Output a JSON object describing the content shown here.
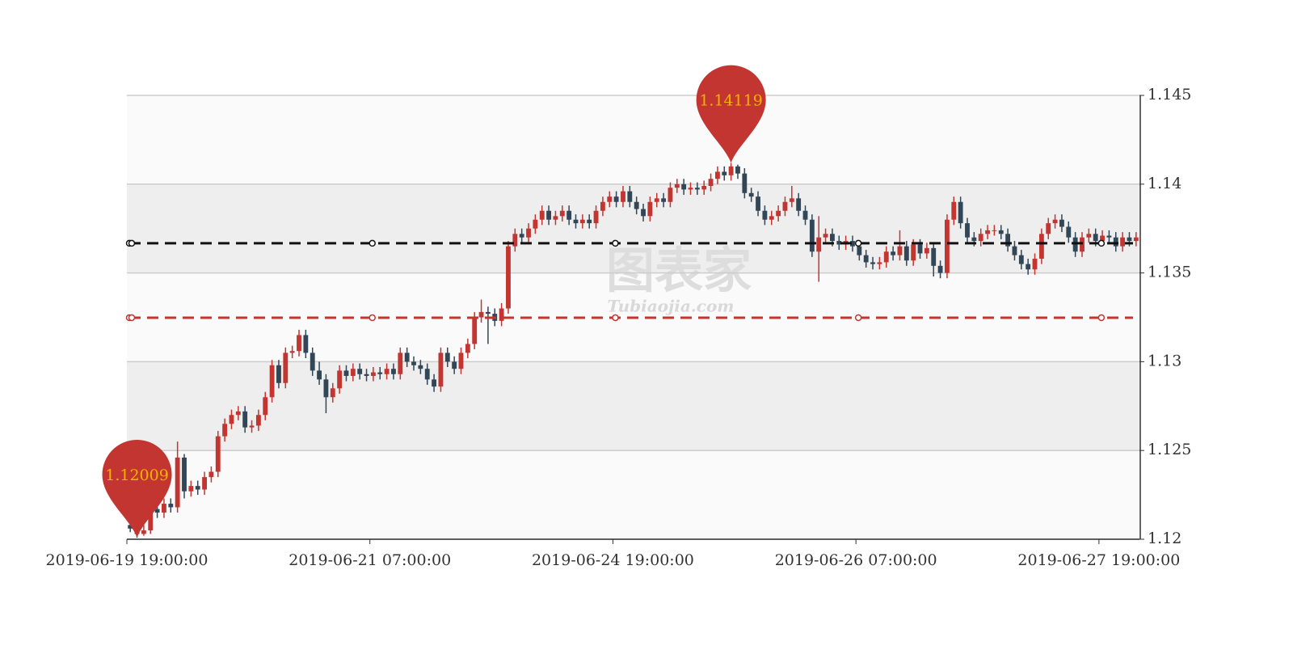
{
  "chart_data": {
    "type": "candlestick",
    "watermark": [
      "图表家",
      "Tubiaojia.com"
    ],
    "categories": [
      "2019-06-19 19:00:00",
      null,
      null,
      null,
      null,
      null,
      null,
      null,
      null,
      null,
      null,
      null,
      null,
      null,
      null,
      null,
      null,
      null,
      null,
      null,
      null,
      null,
      null,
      null,
      null,
      null,
      null,
      null,
      null,
      null,
      null,
      null,
      null,
      null,
      null,
      null,
      "2019-06-21 07:00:00",
      null,
      null,
      null,
      null,
      null,
      null,
      null,
      null,
      null,
      null,
      null,
      null,
      null,
      null,
      null,
      null,
      null,
      null,
      null,
      null,
      null,
      null,
      null,
      null,
      null,
      null,
      null,
      null,
      null,
      null,
      null,
      null,
      null,
      null,
      null,
      "2019-06-24 19:00:00",
      null,
      null,
      null,
      null,
      null,
      null,
      null,
      null,
      null,
      null,
      null,
      null,
      null,
      null,
      null,
      null,
      null,
      null,
      null,
      null,
      null,
      null,
      null,
      null,
      null,
      null,
      null,
      null,
      null,
      null,
      null,
      null,
      null,
      null,
      null,
      "2019-06-26 07:00:00",
      null,
      null,
      null,
      null,
      null,
      null,
      null,
      null,
      null,
      null,
      null,
      null,
      null,
      null,
      null,
      null,
      null,
      null,
      null,
      null,
      null,
      null,
      null,
      null,
      null,
      null,
      null,
      null,
      null,
      null,
      null,
      null,
      null,
      null,
      null,
      "2019-06-27 19:00:00",
      null,
      null,
      null,
      null,
      null
    ],
    "ohlc": [
      [
        1.1208,
        1.1206,
        1.1204,
        1.121
      ],
      [
        1.1206,
        1.1203,
        1.12009,
        1.1208
      ],
      [
        1.1203,
        1.1205,
        1.1202,
        1.1208
      ],
      [
        1.1205,
        1.1217,
        1.1203,
        1.122
      ],
      [
        1.1217,
        1.1215,
        1.1212,
        1.122
      ],
      [
        1.1215,
        1.122,
        1.1212,
        1.1223
      ],
      [
        1.122,
        1.1218,
        1.1215,
        1.1223
      ],
      [
        1.1218,
        1.1246,
        1.1215,
        1.1255
      ],
      [
        1.1246,
        1.1227,
        1.1223,
        1.1248
      ],
      [
        1.1227,
        1.123,
        1.1224,
        1.1233
      ],
      [
        1.123,
        1.1228,
        1.1225,
        1.1233
      ],
      [
        1.1228,
        1.1235,
        1.1225,
        1.1238
      ],
      [
        1.1235,
        1.1238,
        1.1232,
        1.1241
      ],
      [
        1.1238,
        1.1258,
        1.1235,
        1.1261
      ],
      [
        1.1258,
        1.1265,
        1.1255,
        1.1268
      ],
      [
        1.1265,
        1.127,
        1.1262,
        1.1273
      ],
      [
        1.127,
        1.1272,
        1.1267,
        1.1275
      ],
      [
        1.1272,
        1.1263,
        1.126,
        1.1275
      ],
      [
        1.1263,
        1.1264,
        1.126,
        1.1267
      ],
      [
        1.1264,
        1.127,
        1.1261,
        1.1273
      ],
      [
        1.127,
        1.128,
        1.1267,
        1.1283
      ],
      [
        1.128,
        1.1298,
        1.1277,
        1.1301
      ],
      [
        1.1298,
        1.1288,
        1.1285,
        1.1301
      ],
      [
        1.1288,
        1.1305,
        1.1285,
        1.1308
      ],
      [
        1.1305,
        1.1306,
        1.1302,
        1.1309
      ],
      [
        1.1306,
        1.1315,
        1.1303,
        1.1318
      ],
      [
        1.1315,
        1.1305,
        1.1302,
        1.1318
      ],
      [
        1.1305,
        1.1295,
        1.1292,
        1.1308
      ],
      [
        1.1295,
        1.129,
        1.1287,
        1.13
      ],
      [
        1.129,
        1.128,
        1.1271,
        1.1293
      ],
      [
        1.128,
        1.1285,
        1.1277,
        1.1288
      ],
      [
        1.1285,
        1.1295,
        1.1282,
        1.1298
      ],
      [
        1.1295,
        1.1292,
        1.1289,
        1.1298
      ],
      [
        1.1292,
        1.1296,
        1.1289,
        1.1299
      ],
      [
        1.1296,
        1.1293,
        1.129,
        1.1299
      ],
      [
        1.1293,
        1.1292,
        1.1289,
        1.1296
      ],
      [
        1.1292,
        1.1294,
        1.1289,
        1.1297
      ],
      [
        1.1294,
        1.1293,
        1.129,
        1.1297
      ],
      [
        1.1293,
        1.1296,
        1.129,
        1.1299
      ],
      [
        1.1296,
        1.1293,
        1.129,
        1.1299
      ],
      [
        1.1293,
        1.1305,
        1.129,
        1.1308
      ],
      [
        1.1305,
        1.13,
        1.1297,
        1.1308
      ],
      [
        1.13,
        1.1298,
        1.1295,
        1.1303
      ],
      [
        1.1298,
        1.1296,
        1.1293,
        1.1301
      ],
      [
        1.1296,
        1.129,
        1.1287,
        1.1299
      ],
      [
        1.129,
        1.1286,
        1.1283,
        1.1293
      ],
      [
        1.1286,
        1.1305,
        1.1283,
        1.1308
      ],
      [
        1.1305,
        1.13,
        1.1297,
        1.1308
      ],
      [
        1.13,
        1.1296,
        1.1293,
        1.1303
      ],
      [
        1.1296,
        1.1305,
        1.1293,
        1.1308
      ],
      [
        1.1305,
        1.131,
        1.1302,
        1.1313
      ],
      [
        1.131,
        1.1325,
        1.1307,
        1.1328
      ],
      [
        1.1325,
        1.1328,
        1.1322,
        1.1335
      ],
      [
        1.1328,
        1.1327,
        1.131,
        1.1331
      ],
      [
        1.1327,
        1.1323,
        1.132,
        1.133
      ],
      [
        1.1323,
        1.133,
        1.132,
        1.1333
      ],
      [
        1.133,
        1.1365,
        1.1327,
        1.1368
      ],
      [
        1.1365,
        1.1372,
        1.1362,
        1.1375
      ],
      [
        1.1372,
        1.137,
        1.1367,
        1.1375
      ],
      [
        1.137,
        1.1375,
        1.1367,
        1.1378
      ],
      [
        1.1375,
        1.138,
        1.1372,
        1.1383
      ],
      [
        1.138,
        1.1385,
        1.1377,
        1.1388
      ],
      [
        1.1385,
        1.138,
        1.1377,
        1.1388
      ],
      [
        1.138,
        1.1382,
        1.1377,
        1.1385
      ],
      [
        1.1382,
        1.1385,
        1.1379,
        1.1388
      ],
      [
        1.1385,
        1.138,
        1.1377,
        1.1388
      ],
      [
        1.138,
        1.1378,
        1.1375,
        1.1383
      ],
      [
        1.1378,
        1.138,
        1.1375,
        1.1383
      ],
      [
        1.138,
        1.1378,
        1.1375,
        1.1383
      ],
      [
        1.1378,
        1.1385,
        1.1375,
        1.1388
      ],
      [
        1.1385,
        1.139,
        1.1382,
        1.1393
      ],
      [
        1.139,
        1.1393,
        1.1387,
        1.1396
      ],
      [
        1.1393,
        1.139,
        1.1387,
        1.1396
      ],
      [
        1.139,
        1.1396,
        1.1387,
        1.1399
      ],
      [
        1.1396,
        1.139,
        1.1387,
        1.1399
      ],
      [
        1.139,
        1.1386,
        1.1383,
        1.1393
      ],
      [
        1.1386,
        1.1382,
        1.1379,
        1.1389
      ],
      [
        1.1382,
        1.139,
        1.1379,
        1.1393
      ],
      [
        1.139,
        1.1392,
        1.1387,
        1.1395
      ],
      [
        1.1392,
        1.139,
        1.1387,
        1.1395
      ],
      [
        1.139,
        1.1398,
        1.1387,
        1.1401
      ],
      [
        1.1398,
        1.14,
        1.1395,
        1.1403
      ],
      [
        1.14,
        1.1397,
        1.1394,
        1.1403
      ],
      [
        1.1397,
        1.1398,
        1.1394,
        1.1401
      ],
      [
        1.1398,
        1.1397,
        1.1394,
        1.1401
      ],
      [
        1.1397,
        1.1399,
        1.1394,
        1.1402
      ],
      [
        1.1399,
        1.1403,
        1.1396,
        1.1406
      ],
      [
        1.1403,
        1.1407,
        1.14,
        1.141
      ],
      [
        1.1407,
        1.1405,
        1.1402,
        1.141
      ],
      [
        1.1405,
        1.141,
        1.1402,
        1.14119
      ],
      [
        1.141,
        1.1406,
        1.1403,
        1.1411
      ],
      [
        1.1406,
        1.1395,
        1.1392,
        1.1409
      ],
      [
        1.1395,
        1.1393,
        1.139,
        1.1398
      ],
      [
        1.1393,
        1.1385,
        1.1382,
        1.1396
      ],
      [
        1.1385,
        1.138,
        1.1377,
        1.1388
      ],
      [
        1.138,
        1.1382,
        1.1377,
        1.1385
      ],
      [
        1.1382,
        1.1385,
        1.1379,
        1.1388
      ],
      [
        1.1385,
        1.139,
        1.1382,
        1.1393
      ],
      [
        1.139,
        1.1392,
        1.1387,
        1.1399
      ],
      [
        1.1392,
        1.1385,
        1.1382,
        1.1395
      ],
      [
        1.1385,
        1.138,
        1.1377,
        1.1388
      ],
      [
        1.138,
        1.1362,
        1.1359,
        1.1383
      ],
      [
        1.1362,
        1.137,
        1.1345,
        1.1382
      ],
      [
        1.137,
        1.1372,
        1.1367,
        1.1375
      ],
      [
        1.1372,
        1.1368,
        1.1365,
        1.1375
      ],
      [
        1.1368,
        1.1366,
        1.1363,
        1.1371
      ],
      [
        1.1366,
        1.1368,
        1.1363,
        1.1371
      ],
      [
        1.1368,
        1.1365,
        1.1362,
        1.1371
      ],
      [
        1.1365,
        1.136,
        1.1357,
        1.1368
      ],
      [
        1.136,
        1.1356,
        1.1353,
        1.1363
      ],
      [
        1.1356,
        1.1355,
        1.1352,
        1.1359
      ],
      [
        1.1355,
        1.1356,
        1.1352,
        1.1359
      ],
      [
        1.1356,
        1.1362,
        1.1353,
        1.1365
      ],
      [
        1.1362,
        1.136,
        1.1357,
        1.1365
      ],
      [
        1.136,
        1.1365,
        1.1357,
        1.1374
      ],
      [
        1.1365,
        1.1357,
        1.1354,
        1.1368
      ],
      [
        1.1357,
        1.1366,
        1.1354,
        1.1369
      ],
      [
        1.1366,
        1.1361,
        1.1358,
        1.1369
      ],
      [
        1.1361,
        1.1364,
        1.1358,
        1.1367
      ],
      [
        1.1364,
        1.1354,
        1.1348,
        1.1367
      ],
      [
        1.1354,
        1.135,
        1.1347,
        1.1357
      ],
      [
        1.135,
        1.138,
        1.1347,
        1.1383
      ],
      [
        1.138,
        1.139,
        1.1377,
        1.1393
      ],
      [
        1.139,
        1.1378,
        1.1375,
        1.1393
      ],
      [
        1.1378,
        1.137,
        1.1367,
        1.1381
      ],
      [
        1.137,
        1.1368,
        1.1365,
        1.1373
      ],
      [
        1.1368,
        1.1372,
        1.1365,
        1.1375
      ],
      [
        1.1372,
        1.1374,
        1.1369,
        1.1377
      ],
      [
        1.1374,
        1.1374,
        1.1371,
        1.1377
      ],
      [
        1.1374,
        1.1372,
        1.1369,
        1.1377
      ],
      [
        1.1372,
        1.1365,
        1.1362,
        1.1375
      ],
      [
        1.1365,
        1.136,
        1.1357,
        1.1368
      ],
      [
        1.136,
        1.1355,
        1.1352,
        1.1363
      ],
      [
        1.1355,
        1.1352,
        1.1349,
        1.1358
      ],
      [
        1.1352,
        1.1358,
        1.1349,
        1.1361
      ],
      [
        1.1358,
        1.1372,
        1.1355,
        1.1375
      ],
      [
        1.1372,
        1.1378,
        1.1369,
        1.1381
      ],
      [
        1.1378,
        1.138,
        1.1375,
        1.1383
      ],
      [
        1.138,
        1.1376,
        1.1373,
        1.1383
      ],
      [
        1.1376,
        1.137,
        1.1367,
        1.1379
      ],
      [
        1.137,
        1.1362,
        1.1359,
        1.1373
      ],
      [
        1.1362,
        1.137,
        1.1359,
        1.1373
      ],
      [
        1.137,
        1.1372,
        1.1367,
        1.1375
      ],
      [
        1.1372,
        1.1368,
        1.1365,
        1.1375
      ],
      [
        1.1368,
        1.1371,
        1.1365,
        1.1374
      ],
      [
        1.1371,
        1.137,
        1.1367,
        1.1374
      ],
      [
        1.137,
        1.1365,
        1.1362,
        1.1373
      ],
      [
        1.1365,
        1.137,
        1.1362,
        1.1373
      ],
      [
        1.137,
        1.1368,
        1.1365,
        1.1373
      ],
      [
        1.1368,
        1.137,
        1.1365,
        1.1373
      ]
    ],
    "up_color": "#c23531",
    "down_color": "#314656",
    "ylim": [
      1.12,
      1.145
    ],
    "yticks": [
      1.12,
      1.125,
      1.13,
      1.135,
      1.14,
      1.145
    ],
    "grid": true,
    "split_area": true,
    "mark_points": [
      {
        "type": "min",
        "value": 1.12009
      },
      {
        "type": "max",
        "value": 1.14119
      }
    ],
    "mark_point_color": "#c23531",
    "mark_lines": [
      {
        "value": 1.13667,
        "color": "#111111"
      },
      {
        "value": 1.13248,
        "color": "#c23531"
      }
    ]
  }
}
